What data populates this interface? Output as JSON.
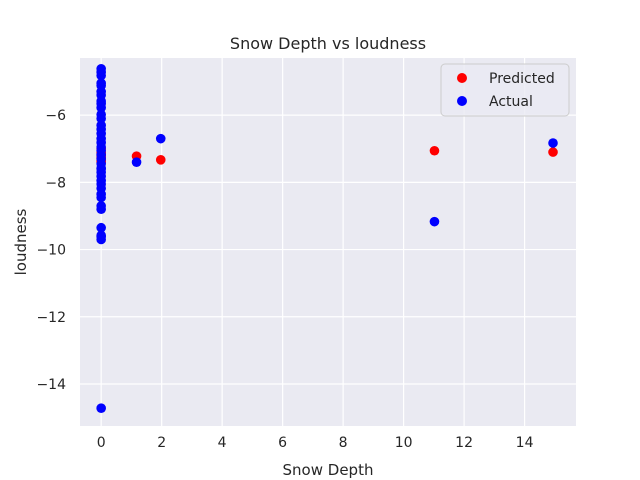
{
  "chart_data": {
    "type": "scatter",
    "title": "Snow Depth vs loudness",
    "xlabel": "Snow Depth",
    "ylabel": "loudness",
    "xlim": [
      -0.7,
      15.7
    ],
    "ylim": [
      -15.25,
      -4.3
    ],
    "xticks": [
      0,
      2,
      4,
      6,
      8,
      10,
      12,
      14
    ],
    "yticks": [
      -14,
      -12,
      -10,
      -8,
      -6
    ],
    "grid": true,
    "legend_position": "top-right",
    "series": [
      {
        "name": "Predicted",
        "color": "#ff0000",
        "x": [
          0,
          0,
          0,
          0,
          0,
          0,
          0,
          0,
          1.17,
          1.97,
          11.02,
          14.94
        ],
        "y": [
          -7.0,
          -7.1,
          -7.15,
          -7.2,
          -7.25,
          -7.3,
          -7.35,
          -7.4,
          -7.22,
          -7.33,
          -7.06,
          -7.1
        ]
      },
      {
        "name": "Actual",
        "color": "#0000ff",
        "x": [
          0,
          0,
          0,
          0,
          0,
          0,
          0,
          0,
          0,
          0,
          0,
          0,
          0,
          0,
          0,
          0,
          0,
          0,
          0,
          0,
          0,
          0,
          0,
          0,
          0,
          0,
          0,
          0,
          0,
          0,
          0,
          0,
          0,
          0,
          0,
          0,
          0,
          0,
          1.17,
          1.97,
          11.02,
          14.94
        ],
        "y": [
          -4.62,
          -4.72,
          -4.82,
          -5.05,
          -5.12,
          -5.3,
          -5.4,
          -5.58,
          -5.66,
          -5.78,
          -5.98,
          -6.1,
          -6.3,
          -6.42,
          -6.55,
          -6.7,
          -6.82,
          -6.95,
          -7.05,
          -7.18,
          -7.3,
          -7.45,
          -7.58,
          -7.7,
          -7.82,
          -7.95,
          -8.05,
          -8.18,
          -8.35,
          -8.45,
          -8.7,
          -8.8,
          -9.35,
          -9.58,
          -9.62,
          -9.7,
          -14.72,
          -7.6,
          -7.4,
          -6.7,
          -9.17,
          -6.83
        ]
      }
    ]
  }
}
